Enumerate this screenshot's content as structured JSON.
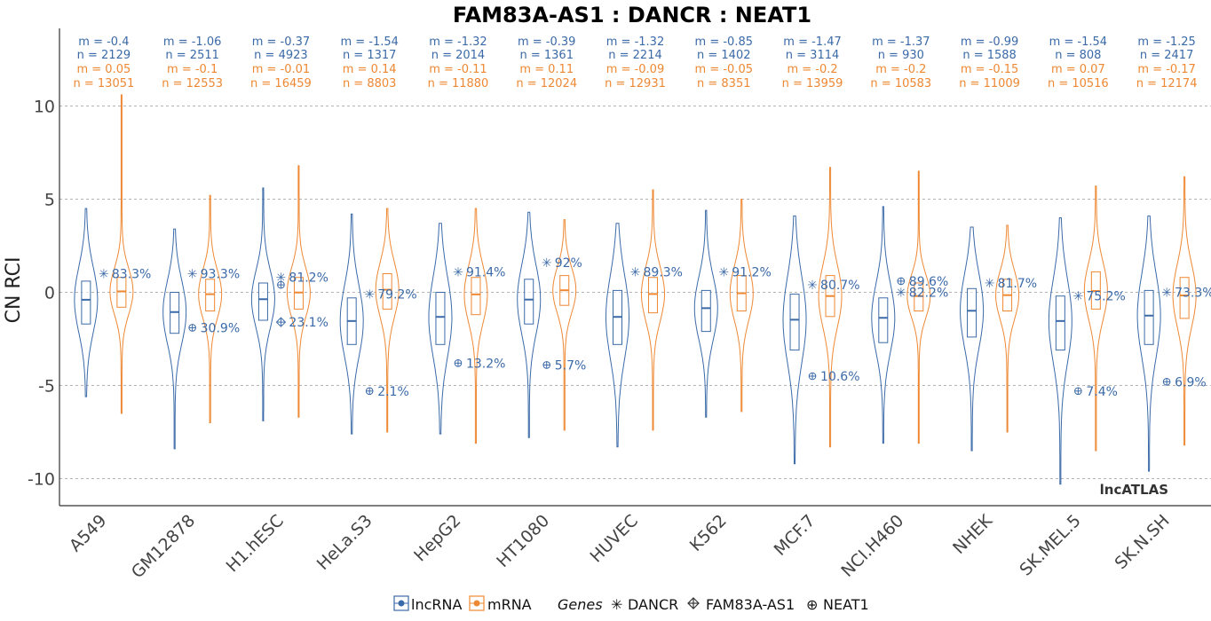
{
  "colors": {
    "lncRNA": "#3b6aa8",
    "mRNA": "#ee8833",
    "grid": "#9a9a9a",
    "axis": "#333333"
  },
  "legend": {
    "lncRNA_label": "lncRNA",
    "mRNA_label": "mRNA",
    "genes_title": "Genes",
    "genes": [
      {
        "symbol": "✳",
        "name": "DANCR"
      },
      {
        "symbol": "⊕",
        "name": "FAM83A-AS1",
        "icon": "diamond-plus-icon"
      },
      {
        "symbol": "⊕",
        "name": "NEAT1"
      }
    ]
  },
  "chart_data": {
    "type": "violin",
    "title": "FAM83A-AS1 : DANCR : NEAT1",
    "ylabel": "CN RCI",
    "xlabel": "",
    "ylim": [
      -11.5,
      13.5
    ],
    "yticks": [
      -10,
      -5,
      0,
      5,
      10
    ],
    "grid": true,
    "watermark": "lncATLAS",
    "series": [
      {
        "name": "lncRNA",
        "color": "#3b6aa8"
      },
      {
        "name": "mRNA",
        "color": "#ee8833"
      }
    ],
    "categories": [
      {
        "name": "A549",
        "lnc": {
          "m": "-0.4",
          "n": "2129",
          "median": -0.4,
          "q1": -1.7,
          "q3": 0.6,
          "min": -5.6,
          "max": 4.5
        },
        "mrna": {
          "m": "0.05",
          "n": "13051",
          "median": 0.05,
          "q1": -0.8,
          "q3": 0.8,
          "min": -6.5,
          "max": 10.6
        }
      },
      {
        "name": "GM12878",
        "lnc": {
          "m": "-1.06",
          "n": "2511",
          "median": -1.06,
          "q1": -2.2,
          "q3": 0.0,
          "min": -8.4,
          "max": 3.4
        },
        "mrna": {
          "m": "-0.1",
          "n": "12553",
          "median": -0.1,
          "q1": -1.0,
          "q3": 0.7,
          "min": -7.0,
          "max": 5.2
        }
      },
      {
        "name": "H1.hESC",
        "lnc": {
          "m": "-0.37",
          "n": "4923",
          "median": -0.37,
          "q1": -1.5,
          "q3": 0.5,
          "min": -6.9,
          "max": 5.6
        },
        "mrna": {
          "m": "-0.01",
          "n": "16459",
          "median": -0.01,
          "q1": -0.9,
          "q3": 0.8,
          "min": -6.7,
          "max": 6.8
        }
      },
      {
        "name": "HeLa.S3",
        "lnc": {
          "m": "-1.54",
          "n": "1317",
          "median": -1.54,
          "q1": -2.8,
          "q3": -0.3,
          "min": -7.6,
          "max": 4.2
        },
        "mrna": {
          "m": "0.14",
          "n": "8803",
          "median": 0.14,
          "q1": -0.9,
          "q3": 1.0,
          "min": -7.5,
          "max": 4.5
        }
      },
      {
        "name": "HepG2",
        "lnc": {
          "m": "-1.32",
          "n": "2014",
          "median": -1.32,
          "q1": -2.8,
          "q3": 0.0,
          "min": -7.6,
          "max": 3.7
        },
        "mrna": {
          "m": "-0.11",
          "n": "11880",
          "median": -0.11,
          "q1": -1.2,
          "q3": 0.8,
          "min": -8.1,
          "max": 4.5
        }
      },
      {
        "name": "HT1080",
        "lnc": {
          "m": "-0.39",
          "n": "1361",
          "median": -0.39,
          "q1": -1.7,
          "q3": 0.7,
          "min": -7.8,
          "max": 4.3
        },
        "mrna": {
          "m": "0.11",
          "n": "12024",
          "median": 0.11,
          "q1": -0.7,
          "q3": 0.9,
          "min": -7.4,
          "max": 3.9
        }
      },
      {
        "name": "HUVEC",
        "lnc": {
          "m": "-1.32",
          "n": "2214",
          "median": -1.32,
          "q1": -2.8,
          "q3": 0.1,
          "min": -8.3,
          "max": 3.7
        },
        "mrna": {
          "m": "-0.09",
          "n": "12931",
          "median": -0.09,
          "q1": -1.1,
          "q3": 0.8,
          "min": -7.4,
          "max": 5.5
        }
      },
      {
        "name": "K562",
        "lnc": {
          "m": "-0.85",
          "n": "1402",
          "median": -0.85,
          "q1": -2.1,
          "q3": 0.1,
          "min": -6.7,
          "max": 4.4
        },
        "mrna": {
          "m": "-0.05",
          "n": "8351",
          "median": -0.05,
          "q1": -1.0,
          "q3": 0.9,
          "min": -6.4,
          "max": 5.0
        }
      },
      {
        "name": "MCF.7",
        "lnc": {
          "m": "-1.47",
          "n": "3114",
          "median": -1.47,
          "q1": -3.1,
          "q3": -0.1,
          "min": -9.2,
          "max": 4.1
        },
        "mrna": {
          "m": "-0.2",
          "n": "13959",
          "median": -0.2,
          "q1": -1.3,
          "q3": 0.9,
          "min": -8.3,
          "max": 6.7
        }
      },
      {
        "name": "NCI.H460",
        "lnc": {
          "m": "-1.37",
          "n": "930",
          "median": -1.37,
          "q1": -2.7,
          "q3": -0.3,
          "min": -8.1,
          "max": 4.6
        },
        "mrna": {
          "m": "-0.2",
          "n": "10583",
          "median": -0.2,
          "q1": -1.0,
          "q3": 0.5,
          "min": -8.1,
          "max": 6.5
        }
      },
      {
        "name": "NHEK",
        "lnc": {
          "m": "-0.99",
          "n": "1588",
          "median": -0.99,
          "q1": -2.4,
          "q3": 0.2,
          "min": -8.5,
          "max": 3.5
        },
        "mrna": {
          "m": "-0.15",
          "n": "11009",
          "median": -0.15,
          "q1": -1.0,
          "q3": 0.7,
          "min": -7.5,
          "max": 3.6
        }
      },
      {
        "name": "SK.MEL.5",
        "lnc": {
          "m": "-1.54",
          "n": "808",
          "median": -1.54,
          "q1": -3.1,
          "q3": -0.2,
          "min": -10.3,
          "max": 4.0
        },
        "mrna": {
          "m": "0.07",
          "n": "10516",
          "median": 0.07,
          "q1": -0.9,
          "q3": 1.1,
          "min": -8.5,
          "max": 5.7
        }
      },
      {
        "name": "SK.N.SH",
        "lnc": {
          "m": "-1.25",
          "n": "2417",
          "median": -1.25,
          "q1": -2.8,
          "q3": 0.1,
          "min": -9.6,
          "max": 4.1
        },
        "mrna": {
          "m": "-0.17",
          "n": "12174",
          "median": -0.17,
          "q1": -1.4,
          "q3": 0.8,
          "min": -8.2,
          "max": 6.2
        }
      }
    ],
    "genes": [
      {
        "name": "DANCR",
        "points": [
          {
            "cell": "A549",
            "value": 1.0,
            "pct": "83.3%"
          },
          {
            "cell": "GM12878",
            "value": 1.0,
            "pct": "93.3%"
          },
          {
            "cell": "H1.hESC",
            "value": 0.8,
            "pct": "81.2%"
          },
          {
            "cell": "HeLa.S3",
            "value": -0.1,
            "pct": "79.2%"
          },
          {
            "cell": "HepG2",
            "value": 1.1,
            "pct": "91.4%"
          },
          {
            "cell": "HT1080",
            "value": 1.6,
            "pct": "92%"
          },
          {
            "cell": "HUVEC",
            "value": 1.1,
            "pct": "89.3%"
          },
          {
            "cell": "K562",
            "value": 1.1,
            "pct": "91.2%"
          },
          {
            "cell": "MCF.7",
            "value": 0.4,
            "pct": "80.7%"
          },
          {
            "cell": "NCI.H460",
            "value": 0.0,
            "pct": "82.2%"
          },
          {
            "cell": "NHEK",
            "value": 0.5,
            "pct": "81.7%"
          },
          {
            "cell": "SK.MEL.5",
            "value": -0.2,
            "pct": "75.2%"
          },
          {
            "cell": "SK.N.SH",
            "value": 0.0,
            "pct": "73.3%"
          }
        ]
      },
      {
        "name": "FAM83A-AS1",
        "points": [
          {
            "cell": "H1.hESC",
            "value": -1.6,
            "pct": "23.1%"
          }
        ]
      },
      {
        "name": "NEAT1",
        "points": [
          {
            "cell": "GM12878",
            "value": -1.9,
            "pct": "30.9%"
          },
          {
            "cell": "H1.hESC",
            "value": 0.4,
            "pct": ""
          },
          {
            "cell": "HeLa.S3",
            "value": -5.3,
            "pct": "2.1%"
          },
          {
            "cell": "HepG2",
            "value": -3.8,
            "pct": "13.2%"
          },
          {
            "cell": "HT1080",
            "value": -3.9,
            "pct": "5.7%"
          },
          {
            "cell": "MCF.7",
            "value": -4.5,
            "pct": "10.6%"
          },
          {
            "cell": "NCI.H460",
            "value": 0.6,
            "pct": "89.6%"
          },
          {
            "cell": "SK.MEL.5",
            "value": -5.3,
            "pct": "7.4%"
          },
          {
            "cell": "SK.N.SH",
            "value": -4.8,
            "pct": "6.9%"
          }
        ]
      }
    ]
  }
}
